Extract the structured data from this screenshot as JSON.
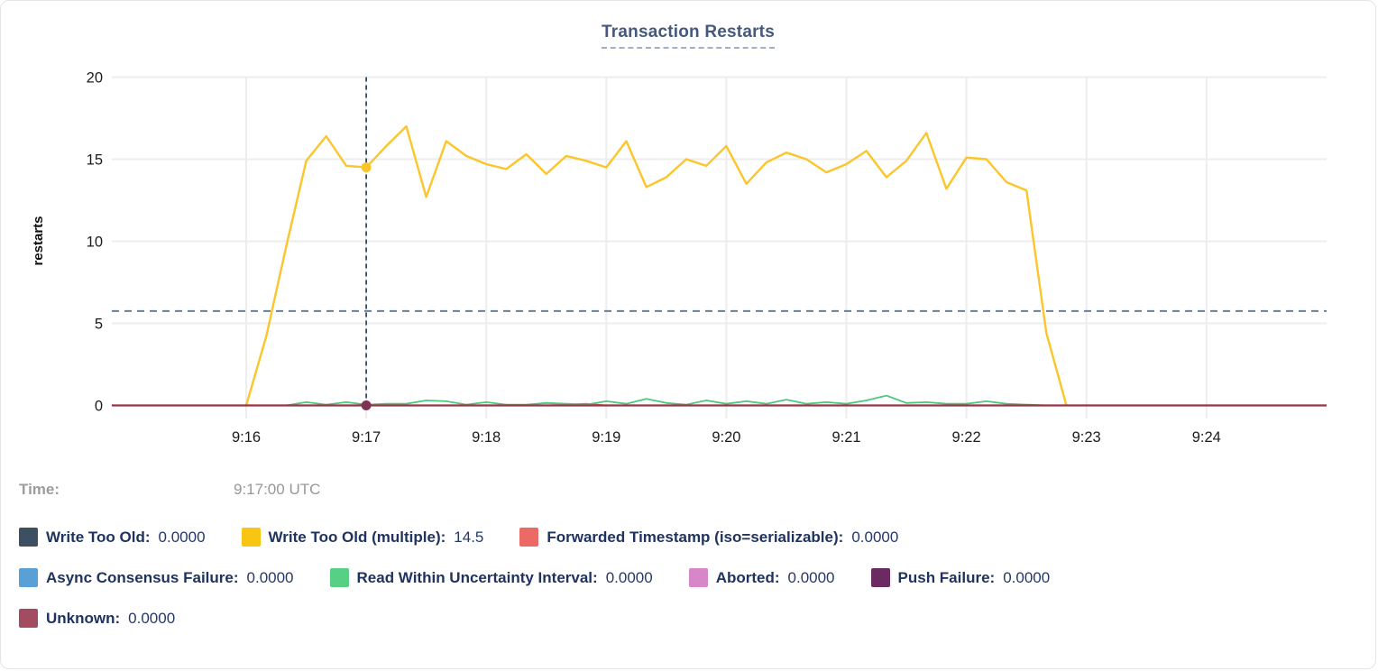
{
  "title": "Transaction Restarts",
  "tooltip": {
    "label": "Time:",
    "value": "9:17:00 UTC"
  },
  "legend": {
    "rows": [
      {
        "items": [
          {
            "label": "Write Too Old:",
            "value": "0.0000",
            "color": "#3e4e63"
          },
          {
            "label": "Write Too Old (multiple):",
            "value": "14.5",
            "color": "#f9c513"
          },
          {
            "label": "Forwarded Timestamp (iso=serializable):",
            "value": "0.0000",
            "color": "#ec6a65"
          }
        ]
      },
      {
        "items": [
          {
            "label": "Async Consensus Failure:",
            "value": "0.0000",
            "color": "#59a0d6"
          },
          {
            "label": "Read Within Uncertainty Interval:",
            "value": "0.0000",
            "color": "#57cf85"
          },
          {
            "label": "Aborted:",
            "value": "0.0000",
            "color": "#d886ca"
          },
          {
            "label": "Push Failure:",
            "value": "0.0000",
            "color": "#6c2a62"
          }
        ]
      },
      {
        "items": [
          {
            "label": "Unknown:",
            "value": "0.0000",
            "color": "#a34b61"
          }
        ]
      }
    ]
  },
  "chart_data": {
    "type": "line",
    "title": "Transaction Restarts",
    "xlabel": "",
    "ylabel": "restarts",
    "ylim": [
      0,
      20
    ],
    "grid": true,
    "y_ticks": [
      0,
      5,
      10,
      15,
      20
    ],
    "x_ticks": [
      "9:16",
      "9:17",
      "9:18",
      "9:19",
      "9:20",
      "9:21",
      "9:22",
      "9:23",
      "9:24"
    ],
    "x_start_label": "9:16:00",
    "x_step_seconds": 10,
    "average_line_value": 5.75,
    "series": [
      {
        "name": "Write Too Old",
        "color": "#3e4e63",
        "constant": 0
      },
      {
        "name": "Write Too Old (multiple)",
        "color": "#fcc52b",
        "values": [
          0,
          4.2,
          9.7,
          14.9,
          16.4,
          14.6,
          14.5,
          15.8,
          17.0,
          12.7,
          16.1,
          15.2,
          14.7,
          14.4,
          15.3,
          14.1,
          15.2,
          14.9,
          14.5,
          16.1,
          13.3,
          13.9,
          15.0,
          14.6,
          15.8,
          13.5,
          14.8,
          15.4,
          15.0,
          14.2,
          14.7,
          15.5,
          13.9,
          14.9,
          16.6,
          13.2,
          15.1,
          15.0,
          13.6,
          13.1,
          4.4,
          0
        ]
      },
      {
        "name": "Forwarded Timestamp (iso=serializable)",
        "color": "#ec6a65",
        "values": [
          0,
          0,
          0,
          0,
          0,
          0,
          0,
          0,
          0,
          0,
          0,
          0,
          0,
          0,
          0,
          0,
          0.05,
          0.1,
          0,
          0,
          0,
          0,
          0,
          0,
          0,
          0,
          0,
          0,
          0,
          0,
          0,
          0,
          0,
          0,
          0,
          0,
          0,
          0,
          0,
          0,
          0,
          0
        ]
      },
      {
        "name": "Async Consensus Failure",
        "color": "#59a0d6",
        "constant": 0
      },
      {
        "name": "Read Within Uncertainty Interval",
        "color": "#4cc97c",
        "values": [
          0,
          0,
          0,
          0.2,
          0.05,
          0.2,
          0.05,
          0.1,
          0.1,
          0.3,
          0.25,
          0.05,
          0.2,
          0.05,
          0.05,
          0.15,
          0.1,
          0.05,
          0.25,
          0.1,
          0.4,
          0.15,
          0.05,
          0.3,
          0.1,
          0.25,
          0.1,
          0.35,
          0.1,
          0.2,
          0.1,
          0.3,
          0.6,
          0.15,
          0.2,
          0.1,
          0.1,
          0.25,
          0.1,
          0.05,
          0,
          0
        ]
      },
      {
        "name": "Aborted",
        "color": "#d886ca",
        "constant": 0
      },
      {
        "name": "Push Failure",
        "color": "#6c2a62",
        "constant": 0
      },
      {
        "name": "Unknown",
        "color": "#9a3145",
        "constant": 0
      }
    ],
    "draw_order": [
      0,
      3,
      5,
      6,
      2,
      4,
      1,
      7
    ],
    "crosshair": {
      "time": "9:17:00 UTC",
      "x_index": 6,
      "points": [
        {
          "series_index": 1,
          "value": 14.5,
          "dot_color": "#fcc52b",
          "r": 5.5
        },
        {
          "series_index": 7,
          "value": 0,
          "dot_color": "#7c3450",
          "r": 5.5
        }
      ]
    },
    "legend_position": "bottom"
  }
}
